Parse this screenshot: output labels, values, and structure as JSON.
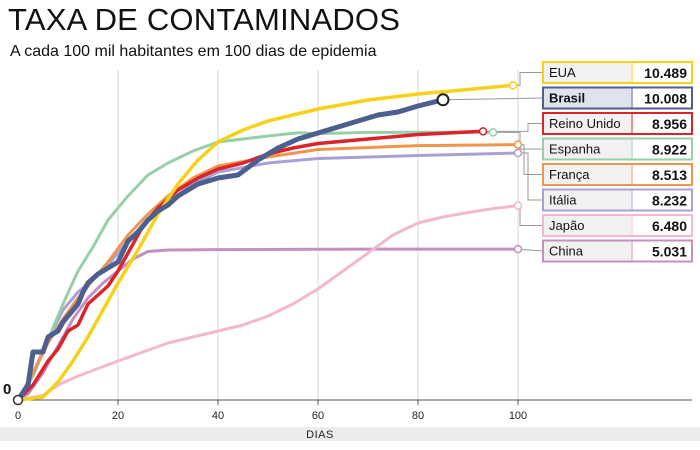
{
  "header": {
    "title": "TAXA DE CONTAMINADOS",
    "subtitle": "A cada 100 mil habitantes em 100 dias de epidemia"
  },
  "chart_data": {
    "type": "line",
    "title": "TAXA DE CONTAMINADOS",
    "subtitle": "A cada 100 mil habitantes em 100 dias de epidemia",
    "xlabel": "DIAS",
    "ylabel": "",
    "y_zero_label": "0",
    "xlim": [
      0,
      135
    ],
    "x_ticks": [
      0,
      20,
      40,
      60,
      80,
      100
    ],
    "x_tick_labels": [
      "0",
      "20",
      "40",
      "60",
      "80",
      "100"
    ],
    "grid": "vertical",
    "legend_position": "right",
    "series": [
      {
        "name": "China",
        "value_label": "5.031",
        "value": 5031,
        "color": "#c58fc0",
        "width": 3,
        "points": [
          [
            0,
            0
          ],
          [
            2,
            200
          ],
          [
            5,
            900
          ],
          [
            8,
            1800
          ],
          [
            11,
            2700
          ],
          [
            14,
            3400
          ],
          [
            17,
            3900
          ],
          [
            20,
            4300
          ],
          [
            23,
            4700
          ],
          [
            26,
            4950
          ],
          [
            30,
            5000
          ],
          [
            40,
            5015
          ],
          [
            60,
            5025
          ],
          [
            80,
            5030
          ],
          [
            100,
            5031
          ]
        ]
      },
      {
        "name": "Japão",
        "value_label": "6.480",
        "value": 6480,
        "color": "#f2b8cf",
        "width": 3,
        "points": [
          [
            0,
            0
          ],
          [
            5,
            150
          ],
          [
            8,
            500
          ],
          [
            12,
            800
          ],
          [
            16,
            1050
          ],
          [
            20,
            1300
          ],
          [
            25,
            1600
          ],
          [
            30,
            1900
          ],
          [
            35,
            2100
          ],
          [
            40,
            2300
          ],
          [
            45,
            2500
          ],
          [
            50,
            2800
          ],
          [
            55,
            3200
          ],
          [
            60,
            3700
          ],
          [
            65,
            4300
          ],
          [
            70,
            4900
          ],
          [
            75,
            5500
          ],
          [
            80,
            5900
          ],
          [
            85,
            6100
          ],
          [
            90,
            6250
          ],
          [
            95,
            6380
          ],
          [
            100,
            6480
          ]
        ]
      },
      {
        "name": "Itália",
        "value_label": "8.232",
        "value": 8232,
        "color": "#aaa0d6",
        "width": 3,
        "points": [
          [
            0,
            0
          ],
          [
            3,
            900
          ],
          [
            6,
            2000
          ],
          [
            9,
            3000
          ],
          [
            12,
            3600
          ],
          [
            15,
            4000
          ],
          [
            18,
            4500
          ],
          [
            22,
            5300
          ],
          [
            26,
            6000
          ],
          [
            30,
            6600
          ],
          [
            35,
            7200
          ],
          [
            40,
            7600
          ],
          [
            50,
            7900
          ],
          [
            60,
            8050
          ],
          [
            80,
            8150
          ],
          [
            100,
            8232
          ]
        ]
      },
      {
        "name": "Espanha",
        "value_label": "8.922",
        "value": 8922,
        "color": "#97cfa8",
        "width": 3,
        "points": [
          [
            0,
            0
          ],
          [
            3,
            800
          ],
          [
            6,
            2000
          ],
          [
            9,
            3200
          ],
          [
            12,
            4300
          ],
          [
            15,
            5100
          ],
          [
            18,
            6000
          ],
          [
            22,
            6800
          ],
          [
            26,
            7500
          ],
          [
            30,
            7900
          ],
          [
            35,
            8300
          ],
          [
            40,
            8600
          ],
          [
            50,
            8800
          ],
          [
            56,
            8910
          ],
          [
            60,
            8880
          ],
          [
            70,
            8920
          ],
          [
            80,
            8922
          ],
          [
            95,
            8922
          ]
        ]
      },
      {
        "name": "França",
        "value_label": "8.513",
        "value": 8513,
        "color": "#f0954f",
        "width": 3,
        "points": [
          [
            0,
            0
          ],
          [
            3,
            900
          ],
          [
            6,
            1900
          ],
          [
            9,
            2700
          ],
          [
            12,
            3400
          ],
          [
            15,
            4000
          ],
          [
            18,
            4600
          ],
          [
            22,
            5500
          ],
          [
            26,
            6200
          ],
          [
            30,
            6800
          ],
          [
            35,
            7400
          ],
          [
            40,
            7800
          ],
          [
            50,
            8100
          ],
          [
            60,
            8350
          ],
          [
            80,
            8480
          ],
          [
            100,
            8513
          ]
        ]
      },
      {
        "name": "Reino Unido",
        "value_label": "8.956",
        "value": 8956,
        "color": "#d9252a",
        "width": 3.5,
        "points": [
          [
            0,
            0
          ],
          [
            3,
            500
          ],
          [
            6,
            1300
          ],
          [
            8,
            1700
          ],
          [
            10,
            2300
          ],
          [
            12,
            2500
          ],
          [
            14,
            3200
          ],
          [
            16,
            3500
          ],
          [
            18,
            3800
          ],
          [
            20,
            4300
          ],
          [
            22,
            4900
          ],
          [
            25,
            5800
          ],
          [
            28,
            6400
          ],
          [
            32,
            7000
          ],
          [
            36,
            7400
          ],
          [
            40,
            7700
          ],
          [
            45,
            7900
          ],
          [
            50,
            8200
          ],
          [
            55,
            8400
          ],
          [
            60,
            8550
          ],
          [
            70,
            8700
          ],
          [
            80,
            8850
          ],
          [
            93,
            8956
          ]
        ]
      },
      {
        "name": "EUA",
        "value_label": "10.489",
        "value": 10489,
        "color": "#f5d11a",
        "width": 3.5,
        "points": [
          [
            0,
            0
          ],
          [
            5,
            100
          ],
          [
            8,
            600
          ],
          [
            11,
            1300
          ],
          [
            14,
            2100
          ],
          [
            17,
            3000
          ],
          [
            20,
            3900
          ],
          [
            24,
            5000
          ],
          [
            28,
            6200
          ],
          [
            32,
            7200
          ],
          [
            36,
            8000
          ],
          [
            40,
            8600
          ],
          [
            45,
            9000
          ],
          [
            50,
            9300
          ],
          [
            60,
            9700
          ],
          [
            70,
            10000
          ],
          [
            80,
            10200
          ],
          [
            90,
            10350
          ],
          [
            99,
            10489
          ]
        ]
      },
      {
        "name": "Brasil",
        "value_label": "10.008",
        "value": 10008,
        "color": "#4c5f8e",
        "width": 5,
        "bold": true,
        "points": [
          [
            0,
            0
          ],
          [
            2,
            500
          ],
          [
            3,
            1600
          ],
          [
            5,
            1600
          ],
          [
            6,
            2100
          ],
          [
            8,
            2300
          ],
          [
            9,
            2600
          ],
          [
            10,
            2800
          ],
          [
            11,
            3000
          ],
          [
            12,
            3200
          ],
          [
            13,
            3600
          ],
          [
            14,
            3900
          ],
          [
            16,
            4200
          ],
          [
            18,
            4400
          ],
          [
            20,
            4600
          ],
          [
            22,
            5300
          ],
          [
            24,
            5600
          ],
          [
            26,
            6000
          ],
          [
            28,
            6300
          ],
          [
            30,
            6500
          ],
          [
            32,
            6800
          ],
          [
            34,
            7000
          ],
          [
            36,
            7200
          ],
          [
            40,
            7400
          ],
          [
            44,
            7500
          ],
          [
            48,
            8000
          ],
          [
            52,
            8400
          ],
          [
            56,
            8700
          ],
          [
            60,
            8900
          ],
          [
            64,
            9100
          ],
          [
            68,
            9300
          ],
          [
            72,
            9500
          ],
          [
            76,
            9600
          ],
          [
            80,
            9800
          ],
          [
            85,
            10008
          ]
        ]
      }
    ]
  }
}
